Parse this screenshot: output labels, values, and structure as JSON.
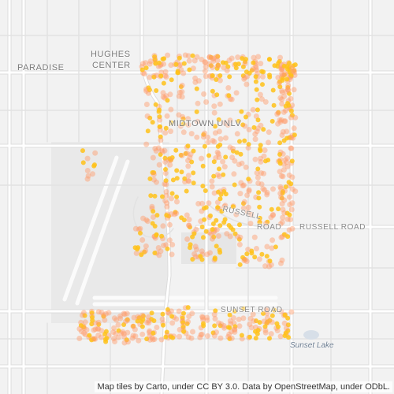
{
  "map": {
    "labels": {
      "hughes_line1": "HUGHES",
      "hughes_line2": "CENTER",
      "paradise": "PARADISE",
      "midtown": "MIDTOWN UNLV",
      "russell_curve": "RUSSELL",
      "russell_short": "ROAD",
      "russell_road": "RUSSELL ROAD",
      "sunset_road": "SUNSET ROAD",
      "sunset_lake": "Sunset Lake"
    },
    "attribution": "Map tiles by Carto, under CC BY 3.0. Data by OpenStreetMap, under ODbL.",
    "colors": {
      "background": "#f2f2f2",
      "road": "#ffffff",
      "road_outline": "#dcdcdc",
      "point_fill": "#ff9b6a",
      "point_highlight": "#ffc21a"
    }
  }
}
